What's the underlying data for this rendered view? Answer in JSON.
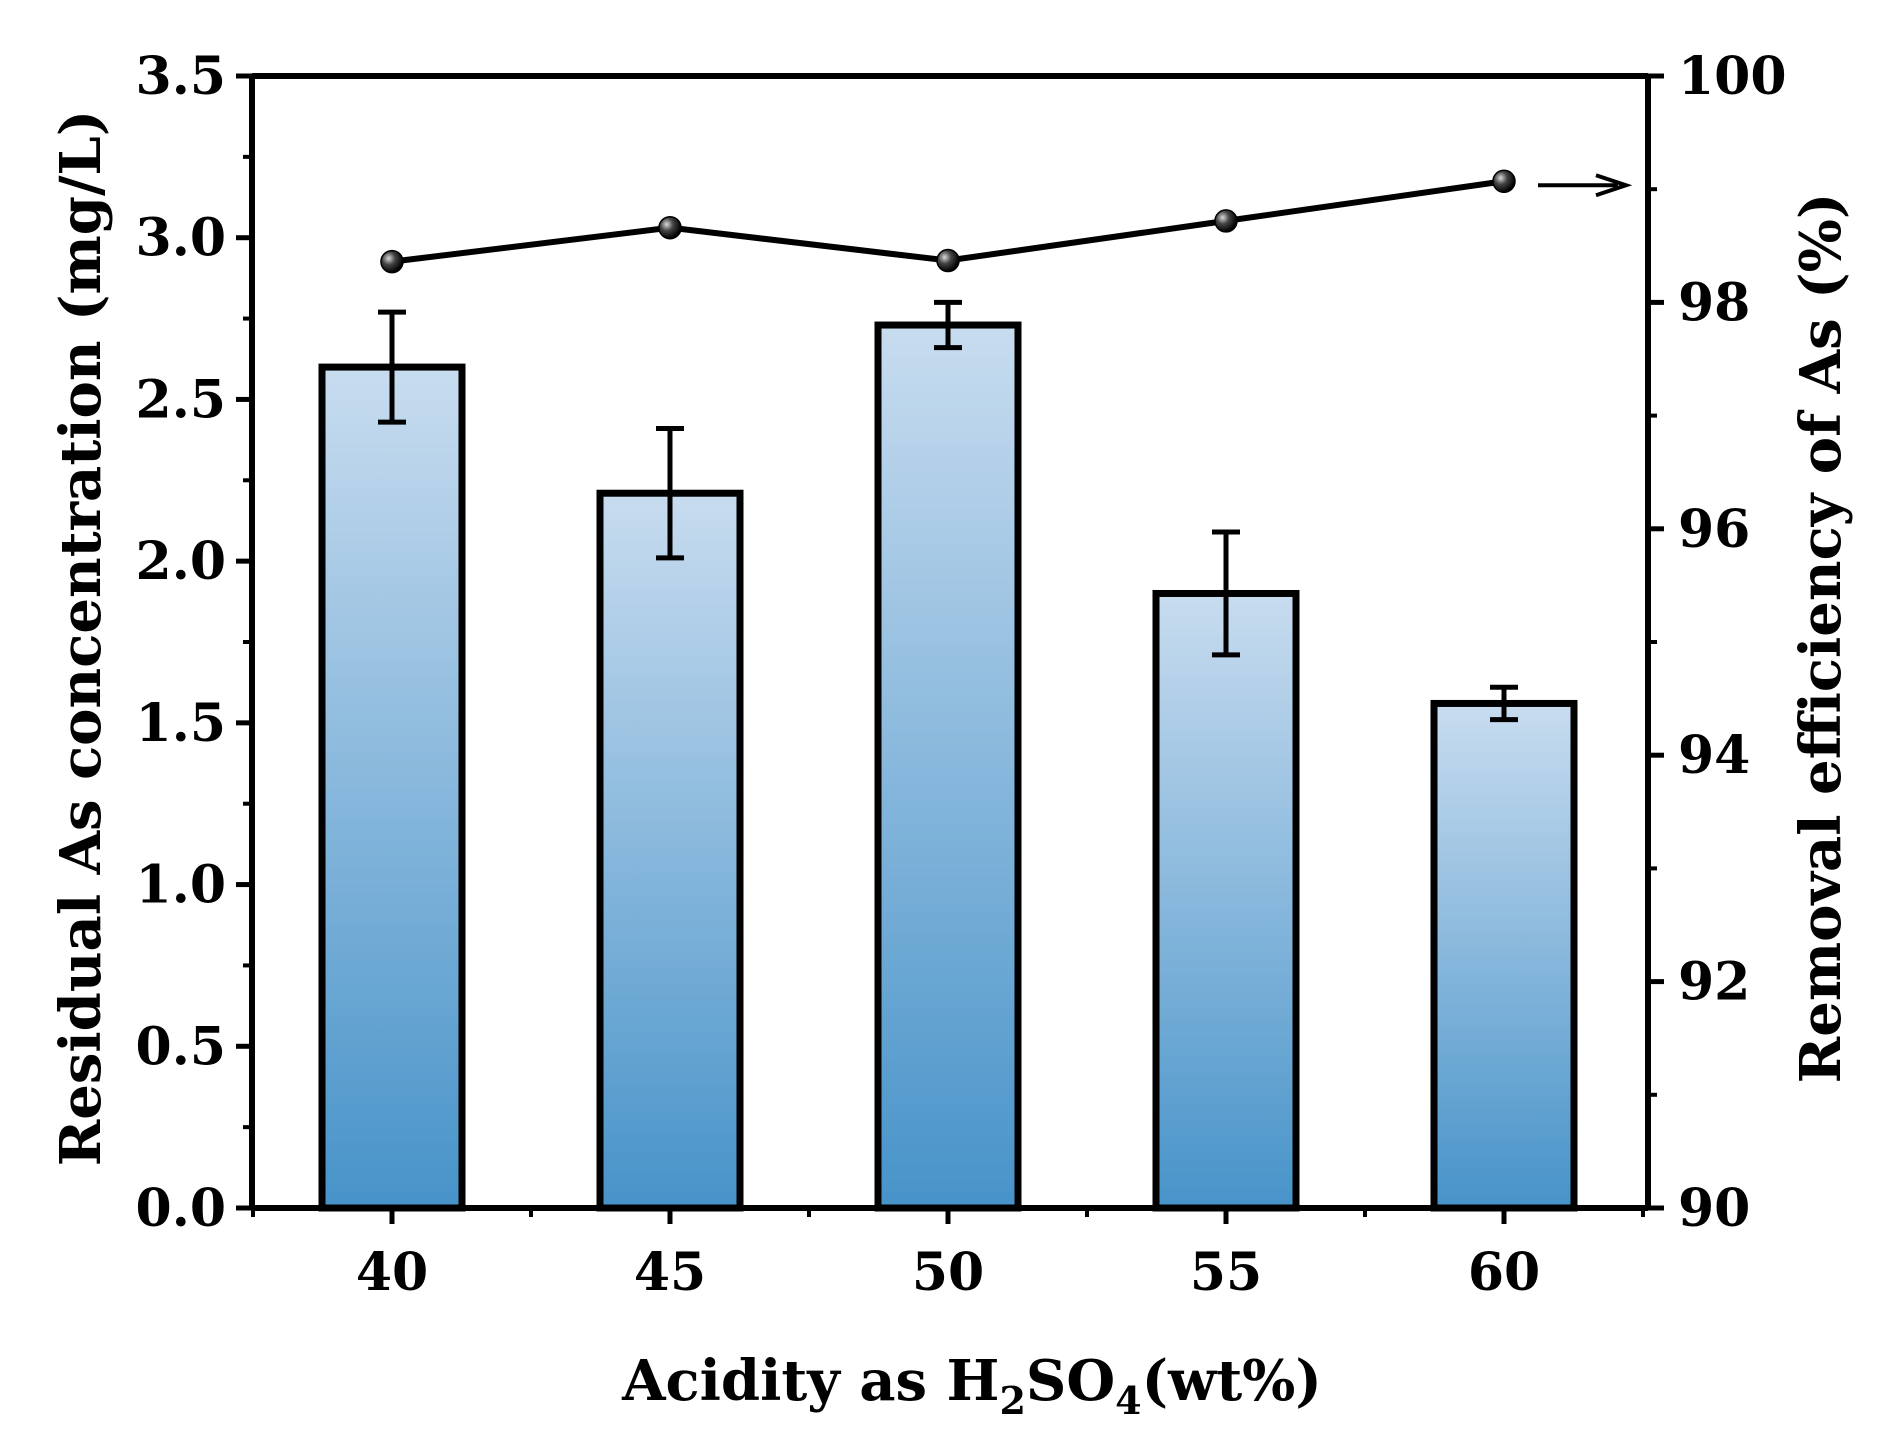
{
  "chart_data": {
    "type": "bar",
    "categories": [
      "40",
      "45",
      "50",
      "55",
      "60"
    ],
    "bar_series": {
      "values": [
        2.6,
        2.21,
        2.73,
        1.9,
        1.56
      ],
      "errors": [
        0.17,
        0.2,
        0.07,
        0.19,
        0.05
      ],
      "axis": "left",
      "fill_gradient": [
        "#c8dcef",
        "#4793c9"
      ]
    },
    "line_series": {
      "values": [
        98.36,
        98.66,
        98.37,
        98.72,
        99.07
      ],
      "axis": "right",
      "marker": "sphere",
      "color": "#000000"
    },
    "xlabel": {
      "prefix": "Acidity as H",
      "sub1": "2",
      "mid": "SO",
      "sub2": "4",
      "suffix": "(wt%)"
    },
    "ylabel_left": "Residual As concentration (mg/L)",
    "ylabel_right": "Removal efficiency of As (%)",
    "ylim_left": [
      0.0,
      3.5
    ],
    "ylim_right": [
      90,
      100
    ],
    "yticks_left": [
      "0.0",
      "0.5",
      "1.0",
      "1.5",
      "2.0",
      "2.5",
      "3.0",
      "3.5"
    ],
    "yticks_right": [
      "90",
      "92",
      "94",
      "96",
      "98",
      "100"
    ],
    "annotation": "arrow pointing to right axis",
    "grid": false
  }
}
